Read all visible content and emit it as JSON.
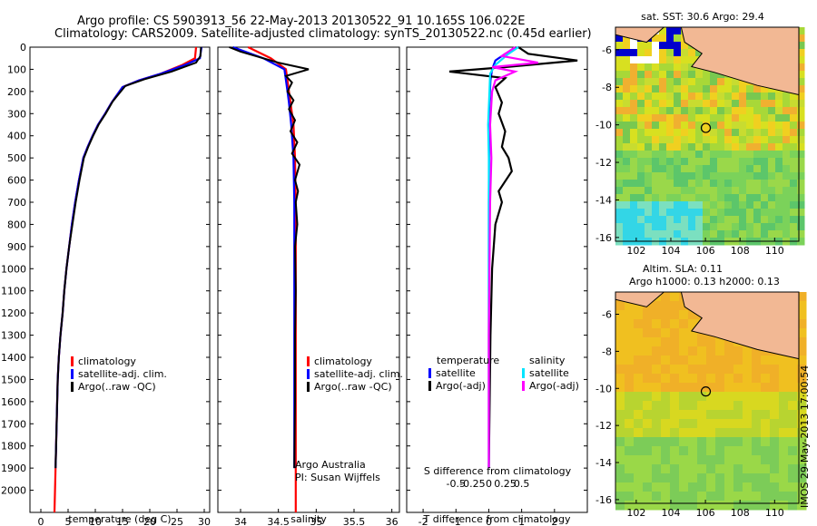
{
  "header": {
    "line1": "Argo profile: CS 5903913_56 22-May-2013 20130522_91 10.165S 106.022E",
    "line2": "Climatology: CARS2009. Satellite-adjusted climatology: synTS_20130522.nc (0.45d earlier)"
  },
  "stamp": "IMOS 29-May-2013 17:00:54",
  "colors": {
    "climatology": "#ff0000",
    "satellite": "#0000ff",
    "argo": "#000000",
    "salinity_sat": "#00e5ff",
    "salinity_argo": "#ff00ff",
    "land": "#f2b894"
  },
  "chart_data": [
    {
      "type": "line",
      "xlabel": "temperature (deg C)",
      "ylim": [
        2100,
        0
      ],
      "xlim": [
        -2,
        31
      ],
      "xticks": [
        0,
        5,
        10,
        15,
        20,
        25,
        30
      ],
      "yticks": [
        0,
        100,
        200,
        300,
        400,
        500,
        600,
        700,
        800,
        900,
        1000,
        1100,
        1200,
        1300,
        1400,
        1500,
        1600,
        1700,
        1800,
        1900,
        2000
      ],
      "legend": [
        "climatology",
        "satellite-adj. clim.",
        "Argo(..raw -QC)"
      ],
      "series": [
        {
          "name": "climatology",
          "color": "#ff0000",
          "x": [
            28.5,
            28.3,
            26,
            22,
            18,
            15,
            13,
            11.8,
            10.5,
            9.5,
            8.6,
            7.8,
            7.0,
            6.3,
            5.7,
            5.2,
            4.7,
            4.3,
            4.0,
            3.6,
            3.3,
            3.1,
            2.9,
            2.7,
            2.5
          ],
          "y": [
            0,
            50,
            80,
            120,
            150,
            180,
            250,
            300,
            350,
            400,
            450,
            500,
            600,
            700,
            800,
            900,
            1000,
            1100,
            1200,
            1300,
            1400,
            1500,
            1700,
            1900,
            2100
          ]
        },
        {
          "name": "satellite-adj. clim.",
          "color": "#0000ff",
          "x": [
            29.5,
            29.2,
            26.5,
            22,
            18,
            15,
            13,
            11.8,
            10.5,
            9.5,
            8.6,
            7.8,
            7.0,
            6.3,
            5.7,
            5.2,
            4.7,
            4.3,
            4.0,
            3.6,
            3.3,
            3.1,
            2.9,
            2.7
          ],
          "y": [
            0,
            50,
            80,
            120,
            150,
            180,
            250,
            300,
            350,
            400,
            450,
            500,
            600,
            700,
            800,
            900,
            1000,
            1100,
            1200,
            1300,
            1400,
            1500,
            1700,
            1900
          ]
        },
        {
          "name": "Argo(..raw -QC)",
          "color": "#000000",
          "x": [
            29.4,
            29.3,
            28.5,
            24,
            19,
            15.5,
            13.2,
            11.9,
            10.6,
            9.6,
            8.7,
            7.9,
            7.1,
            6.4,
            5.8,
            5.2,
            4.7,
            4.3,
            4.0,
            3.6,
            3.3,
            3.1,
            2.9,
            2.7
          ],
          "y": [
            0,
            40,
            70,
            110,
            145,
            175,
            245,
            300,
            350,
            400,
            450,
            500,
            600,
            700,
            800,
            900,
            1000,
            1100,
            1200,
            1300,
            1400,
            1500,
            1700,
            1900
          ]
        }
      ]
    },
    {
      "type": "line",
      "xlabel": "salinity",
      "ylim": [
        2100,
        0
      ],
      "xlim": [
        33.7,
        36.1
      ],
      "xticks": [
        34,
        34.5,
        35,
        35.5,
        36
      ],
      "legend": [
        "climatology",
        "satellite-adj. clim.",
        "Argo(..raw -QC)"
      ],
      "note": [
        "Argo Australia",
        "PI: Susan Wijffels"
      ],
      "series": [
        {
          "name": "climatology",
          "color": "#ff0000",
          "x": [
            34.1,
            34.4,
            34.6,
            34.62,
            34.64,
            34.66,
            34.7,
            34.72,
            34.73,
            34.73,
            34.73,
            34.73,
            34.73,
            34.73
          ],
          "y": [
            0,
            50,
            100,
            150,
            200,
            250,
            350,
            500,
            700,
            1000,
            1300,
            1600,
            1900,
            2100
          ]
        },
        {
          "name": "satellite-adj. clim.",
          "color": "#0000ff",
          "x": [
            33.9,
            34.3,
            34.58,
            34.6,
            34.62,
            34.64,
            34.67,
            34.7,
            34.71,
            34.71,
            34.71,
            34.71,
            34.71
          ],
          "y": [
            0,
            50,
            100,
            150,
            200,
            250,
            350,
            500,
            700,
            1000,
            1300,
            1600,
            1900
          ]
        },
        {
          "name": "Argo(..raw -QC)",
          "color": "#000000",
          "x": [
            33.85,
            34.0,
            34.2,
            34.5,
            34.9,
            34.6,
            34.68,
            34.62,
            34.7,
            34.64,
            34.72,
            34.66,
            34.75,
            34.68,
            34.78,
            34.72,
            34.76,
            34.73,
            34.75,
            34.72,
            34.73,
            34.72,
            34.72,
            34.71
          ],
          "y": [
            0,
            20,
            40,
            70,
            100,
            130,
            160,
            200,
            240,
            280,
            330,
            380,
            430,
            480,
            530,
            600,
            650,
            700,
            800,
            900,
            1100,
            1300,
            1600,
            1900
          ]
        }
      ]
    },
    {
      "type": "line",
      "xlabel": "T difference from climatology",
      "x2label": "S difference from climatology",
      "ylim": [
        2100,
        0
      ],
      "xlim": [
        -2.5,
        3
      ],
      "xticks": [
        -2,
        -1,
        0,
        1,
        2
      ],
      "x2ticks": [
        -0.5,
        -0.25,
        0,
        0.25,
        0.5
      ],
      "legend_left": {
        "title": "temperature",
        "items": [
          "satellite",
          "Argo(-adj)"
        ]
      },
      "legend_right": {
        "title": "salinity",
        "items": [
          "satellite",
          "Argo(-adj)"
        ]
      },
      "series": [
        {
          "name": "satellite",
          "group": "temperature",
          "color": "#0000ff",
          "x": [
            0.9,
            0.5,
            0.2,
            0.1,
            0.05,
            0.02,
            0.01,
            0,
            0,
            0
          ],
          "y": [
            0,
            30,
            60,
            100,
            150,
            250,
            400,
            700,
            1200,
            1900
          ]
        },
        {
          "name": "Argo(-adj)",
          "group": "temperature",
          "color": "#000000",
          "x": [
            0.9,
            1.2,
            2.7,
            0.5,
            -1.2,
            0.5,
            0.2,
            0.4,
            0.3,
            0.5,
            0.4,
            0.6,
            0.7,
            0.3,
            0.4,
            0.2,
            0.1,
            0.05,
            0
          ],
          "y": [
            0,
            30,
            60,
            90,
            110,
            140,
            180,
            250,
            300,
            380,
            450,
            500,
            560,
            650,
            700,
            800,
            1000,
            1300,
            1900
          ]
        },
        {
          "name": "satellite",
          "group": "salinity",
          "color": "#00e5ff",
          "x": [
            0.45,
            0.3,
            0.1,
            0.02,
            0.01,
            -0.01,
            0,
            0,
            0,
            0
          ],
          "y": [
            0,
            30,
            80,
            120,
            200,
            350,
            500,
            800,
            1300,
            1900
          ]
        },
        {
          "name": "Argo(-adj)",
          "group": "salinity",
          "color": "#ff00ff",
          "x": [
            0.4,
            0.2,
            0.75,
            0.05,
            0.4,
            0.1,
            0.05,
            0.02,
            0.04,
            0.02,
            0.01,
            0,
            0
          ],
          "y": [
            0,
            40,
            70,
            90,
            110,
            150,
            200,
            350,
            500,
            700,
            1000,
            1300,
            1900
          ]
        }
      ]
    },
    {
      "type": "heatmap",
      "title": "sat. SST: 30.6  Argo: 29.4",
      "xlim": [
        100.8,
        111.4
      ],
      "ylim": [
        -16.2,
        -4.8
      ],
      "xticks": [
        102,
        104,
        106,
        108,
        110
      ],
      "yticks": [
        -6,
        -8,
        -10,
        -12,
        -14,
        -16
      ],
      "marker": {
        "lon": 106.022,
        "lat": -10.165
      }
    },
    {
      "type": "heatmap",
      "title": [
        "Altim. SLA: 0.11",
        "Argo h1000: 0.13 h2000: 0.13"
      ],
      "xlim": [
        100.8,
        111.4
      ],
      "ylim": [
        -16.2,
        -4.8
      ],
      "xticks": [
        102,
        104,
        106,
        108,
        110
      ],
      "yticks": [
        -6,
        -8,
        -10,
        -12,
        -14,
        -16
      ],
      "marker": {
        "lon": 106.022,
        "lat": -10.165
      }
    }
  ]
}
